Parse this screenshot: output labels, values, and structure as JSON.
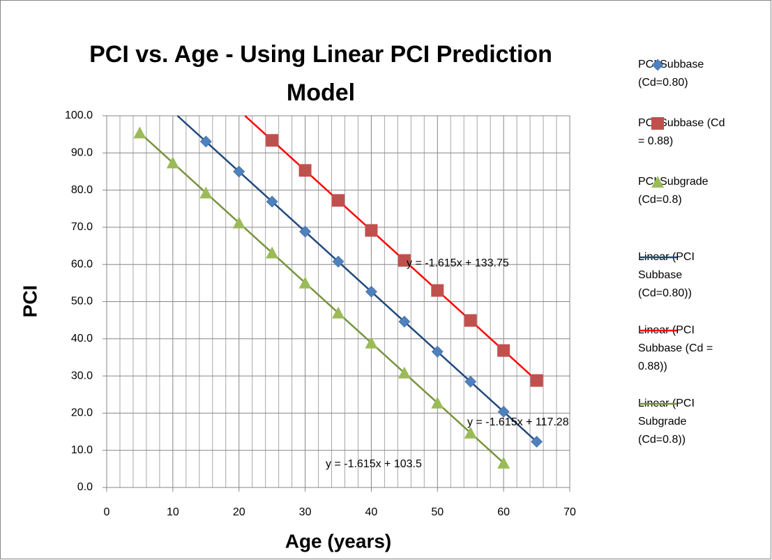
{
  "chart_data": {
    "type": "scatter",
    "title": "PCI vs. Age - Using Linear PCI Prediction Model",
    "x_label": "Age (years)",
    "y_label": "PCI",
    "xlim": [
      0,
      70
    ],
    "xticks": [
      0,
      10,
      20,
      30,
      40,
      50,
      60,
      70
    ],
    "xminorticks": [
      2,
      4,
      6,
      8,
      12,
      14,
      16,
      18,
      22,
      24,
      26,
      28,
      32,
      34,
      36,
      38,
      42,
      44,
      46,
      48,
      52,
      54,
      56,
      58,
      62,
      64,
      66,
      68
    ],
    "ylim": [
      0,
      100
    ],
    "yticks": [
      {
        "value": 0,
        "label": "0.0"
      },
      {
        "value": 10,
        "label": "10.0"
      },
      {
        "value": 20,
        "label": "20.0"
      },
      {
        "value": 30,
        "label": "30.0"
      },
      {
        "value": 40,
        "label": "40.0"
      },
      {
        "value": 50,
        "label": "50.0"
      },
      {
        "value": 60,
        "label": "60.0"
      },
      {
        "value": 70,
        "label": "70.0"
      },
      {
        "value": 80,
        "label": "80.0"
      },
      {
        "value": 90,
        "label": "90.0"
      },
      {
        "value": 100,
        "label": "100.0"
      }
    ],
    "grid": true,
    "legend": "right",
    "series": [
      {
        "name": "PCI Subbase (Cd=0.80)",
        "color": "#4f81bd",
        "marker": "diamond",
        "x": [
          15,
          20,
          25,
          30,
          35,
          40,
          45,
          50,
          55,
          60,
          65
        ],
        "values": [
          93.06,
          84.98,
          76.91,
          68.83,
          60.76,
          52.68,
          44.61,
          36.53,
          28.46,
          20.38,
          12.31
        ]
      },
      {
        "name": "PCI Subbase (Cd = 0.88)",
        "color": "#c0504d",
        "marker": "square",
        "x": [
          25,
          30,
          35,
          40,
          45,
          50,
          55,
          60,
          65
        ],
        "values": [
          93.38,
          85.3,
          77.23,
          69.15,
          61.08,
          53.0,
          44.93,
          36.85,
          28.78
        ]
      },
      {
        "name": "PCI Subgrade (Cd=0.8)",
        "color": "#9bbb59",
        "marker": "triangle",
        "x": [
          5,
          10,
          15,
          20,
          25,
          30,
          35,
          40,
          45,
          50,
          55,
          60
        ],
        "values": [
          95.43,
          87.35,
          79.28,
          71.2,
          63.13,
          55.05,
          46.98,
          38.9,
          30.83,
          22.75,
          14.68,
          6.6
        ]
      },
      {
        "name": "Linear (PCI Subbase (Cd=0.80))",
        "color": "#1f497d",
        "marker": "line",
        "x": [
          10.7,
          65
        ],
        "values": [
          100,
          12.31
        ]
      },
      {
        "name": "Linear (PCI Subbase (Cd = 0.88))",
        "color": "#ff0000",
        "marker": "line",
        "x": [
          20.9,
          65
        ],
        "values": [
          100,
          28.78
        ]
      },
      {
        "name": "Linear (PCI Subgrade (Cd=0.8))",
        "color": "#77933c",
        "marker": "line",
        "x": [
          5,
          60
        ],
        "values": [
          95.43,
          6.6
        ]
      }
    ],
    "annotations": [
      "y = -1.615x + 133.75",
      "y = -1.615x + 117.28",
      "y = -1.615x + 103.5"
    ]
  }
}
